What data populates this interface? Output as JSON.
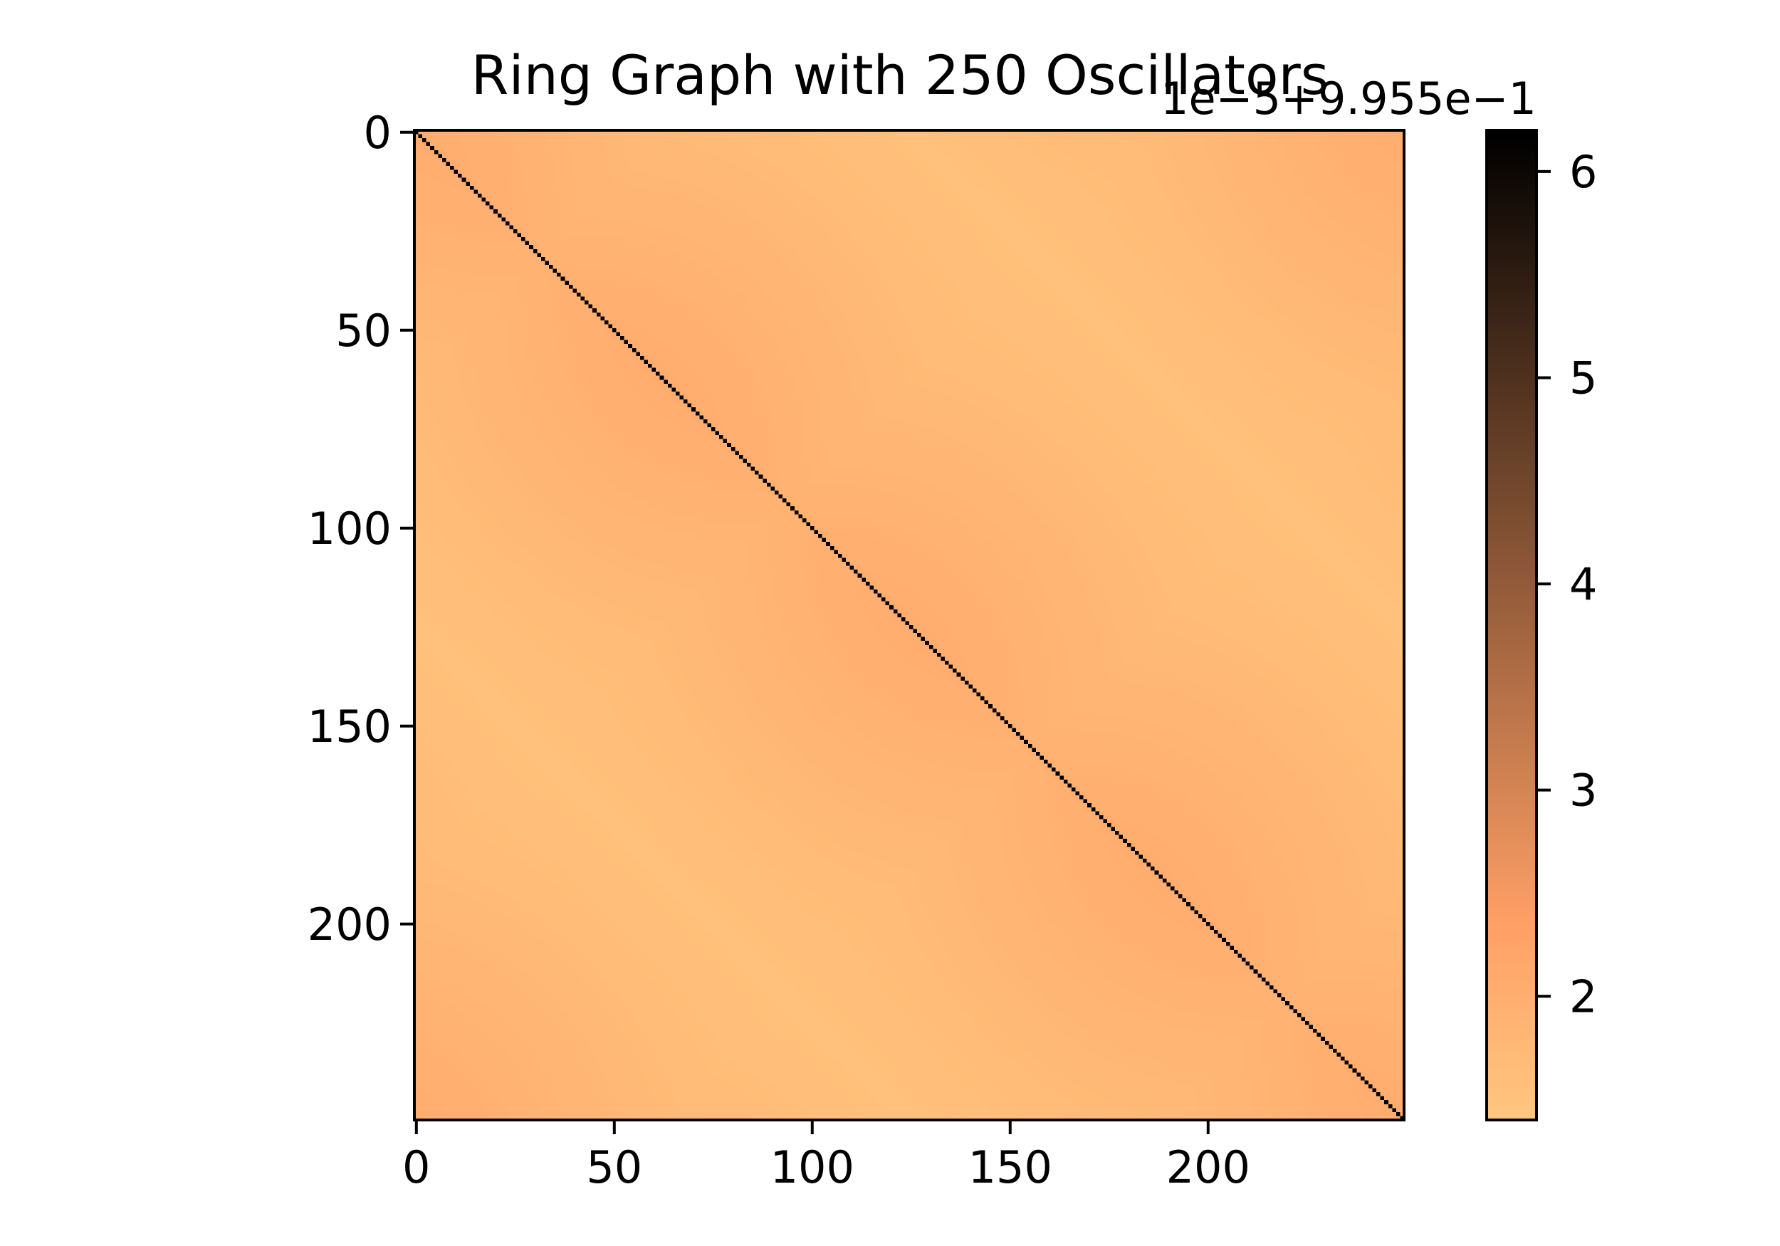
{
  "chart_data": {
    "type": "heatmap",
    "title": "Ring Graph with 250 Oscillators",
    "n": 250,
    "xlabel": "",
    "ylabel": "",
    "x_ticks": [
      0,
      50,
      100,
      150,
      200
    ],
    "y_ticks": [
      0,
      50,
      100,
      150,
      200
    ],
    "x_tick_labels": [
      "0",
      "50",
      "100",
      "150",
      "200"
    ],
    "y_tick_labels": [
      "0",
      "50",
      "100",
      "150",
      "200"
    ],
    "matrix_description": "symmetric; diagonal at colorbar maximum (~6.2); off-diagonal values vary smoothly between ~1.5 and ~2.1, highest near the diagonal, corners (0,249)/(249,0) and center, lowest near (0,125)/(125,0) edges",
    "diagonal_value": 6.2,
    "offdiag_min": 1.45,
    "offdiag_max": 2.1,
    "colormap": "copper_r",
    "colorbar": {
      "range": [
        1.4,
        6.2
      ],
      "ticks": [
        2,
        3,
        4,
        5,
        6
      ],
      "tick_labels": [
        "2",
        "3",
        "4",
        "5",
        "6"
      ],
      "offset_label": "1e−5+9.955e−1"
    },
    "grid": false
  }
}
